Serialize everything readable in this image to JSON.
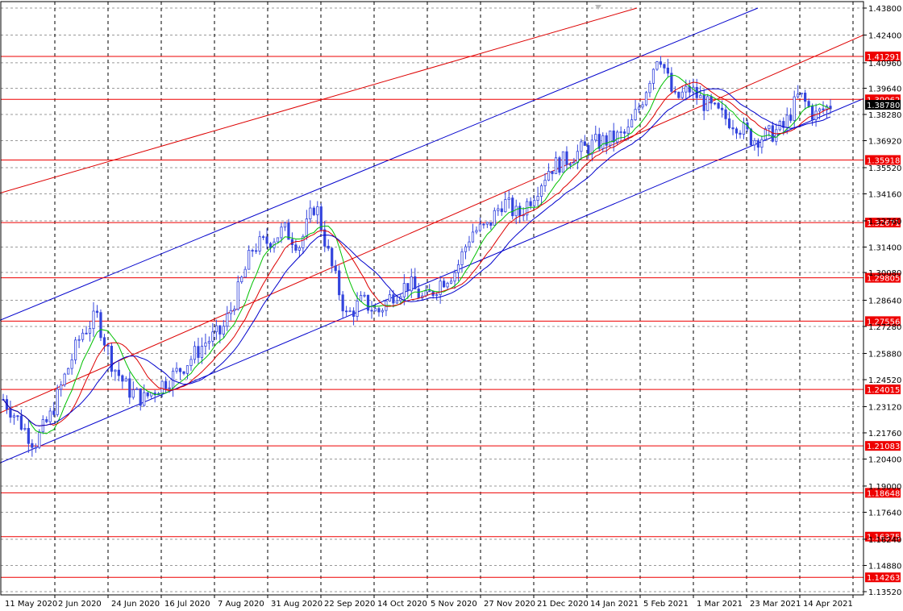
{
  "chart_data": {
    "type": "candlestick",
    "y_axis_ticks": [
      "1.43800",
      "1.42400",
      "1.40960",
      "1.39640",
      "1.38280",
      "1.36920",
      "1.35520",
      "1.34160",
      "1.32760",
      "1.31400",
      "1.30080",
      "1.28640",
      "1.27280",
      "1.25880",
      "1.24520",
      "1.23120",
      "1.21760",
      "1.20400",
      "1.19000",
      "1.17640",
      "1.16240",
      "1.14880",
      "1.13520"
    ],
    "x_axis_ticks": [
      "11 May 2020",
      "2 Jun 2020",
      "24 Jun 2020",
      "16 Jul 2020",
      "7 Aug 2020",
      "31 Aug 2020",
      "22 Sep 2020",
      "14 Oct 2020",
      "5 Nov 2020",
      "27 Nov 2020",
      "21 Dec 2020",
      "14 Jan 2021",
      "5 Feb 2021",
      "1 Mar 2021",
      "23 Mar 2021",
      "14 Apr 2021"
    ],
    "ylim": [
      1.1352,
      1.438
    ],
    "current_price": "1.38780",
    "horizontal_levels": [
      "1.41291",
      "1.39062",
      "1.35918",
      "1.32671",
      "1.29805",
      "1.27556",
      "1.24015",
      "1.21083",
      "1.18648",
      "1.16375",
      "1.14263"
    ],
    "approx_close_series": [
      1.235,
      1.224,
      1.212,
      1.226,
      1.248,
      1.269,
      1.278,
      1.253,
      1.24,
      1.235,
      1.242,
      1.248,
      1.256,
      1.265,
      1.27,
      1.29,
      1.314,
      1.317,
      1.323,
      1.315,
      1.337,
      1.305,
      1.278,
      1.286,
      1.28,
      1.29,
      1.295,
      1.286,
      1.296,
      1.302,
      1.322,
      1.324,
      1.338,
      1.33,
      1.342,
      1.355,
      1.359,
      1.364,
      1.368,
      1.37,
      1.373,
      1.392,
      1.416,
      1.39,
      1.396,
      1.388,
      1.382,
      1.378,
      1.37,
      1.372,
      1.376,
      1.393,
      1.382,
      1.3878
    ],
    "colors": {
      "candles": "#3344dd",
      "ma_fast": "#00c000",
      "ma_mid": "#dd0000",
      "ma_slow": "#0000cc",
      "levels": "#ee0000",
      "channel": "#0000cc",
      "red_trend": "#dd0000",
      "current_price_bg": "#000000",
      "grid": "#000000"
    },
    "grid": "dashed",
    "legend": "none"
  }
}
